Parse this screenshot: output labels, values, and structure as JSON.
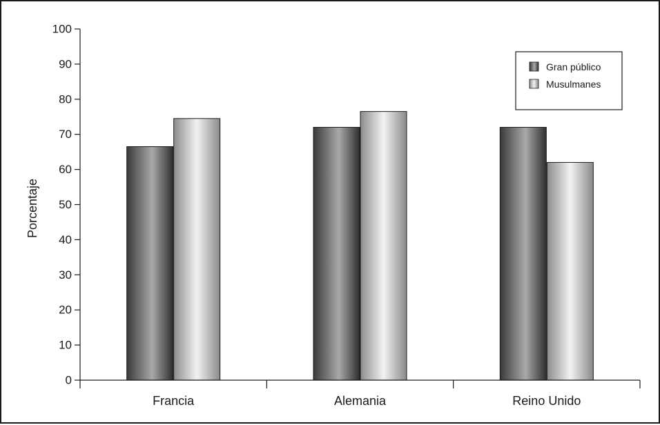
{
  "chart_data": {
    "type": "bar",
    "title": "",
    "xlabel": "",
    "ylabel": "Porcentaje",
    "ylim": [
      0,
      100
    ],
    "yticks": [
      0,
      10,
      20,
      30,
      40,
      50,
      60,
      70,
      80,
      90,
      100
    ],
    "categories": [
      "Francia",
      "Alemania",
      "Reino Unido"
    ],
    "series": [
      {
        "name": "Gran público",
        "values": [
          66.5,
          72,
          72
        ],
        "color": "#6e6e6e"
      },
      {
        "name": "Musulmanes",
        "values": [
          74.5,
          76.5,
          62
        ],
        "color": "#bdbdbd"
      }
    ],
    "grid": false,
    "legend_position": "top-right"
  }
}
